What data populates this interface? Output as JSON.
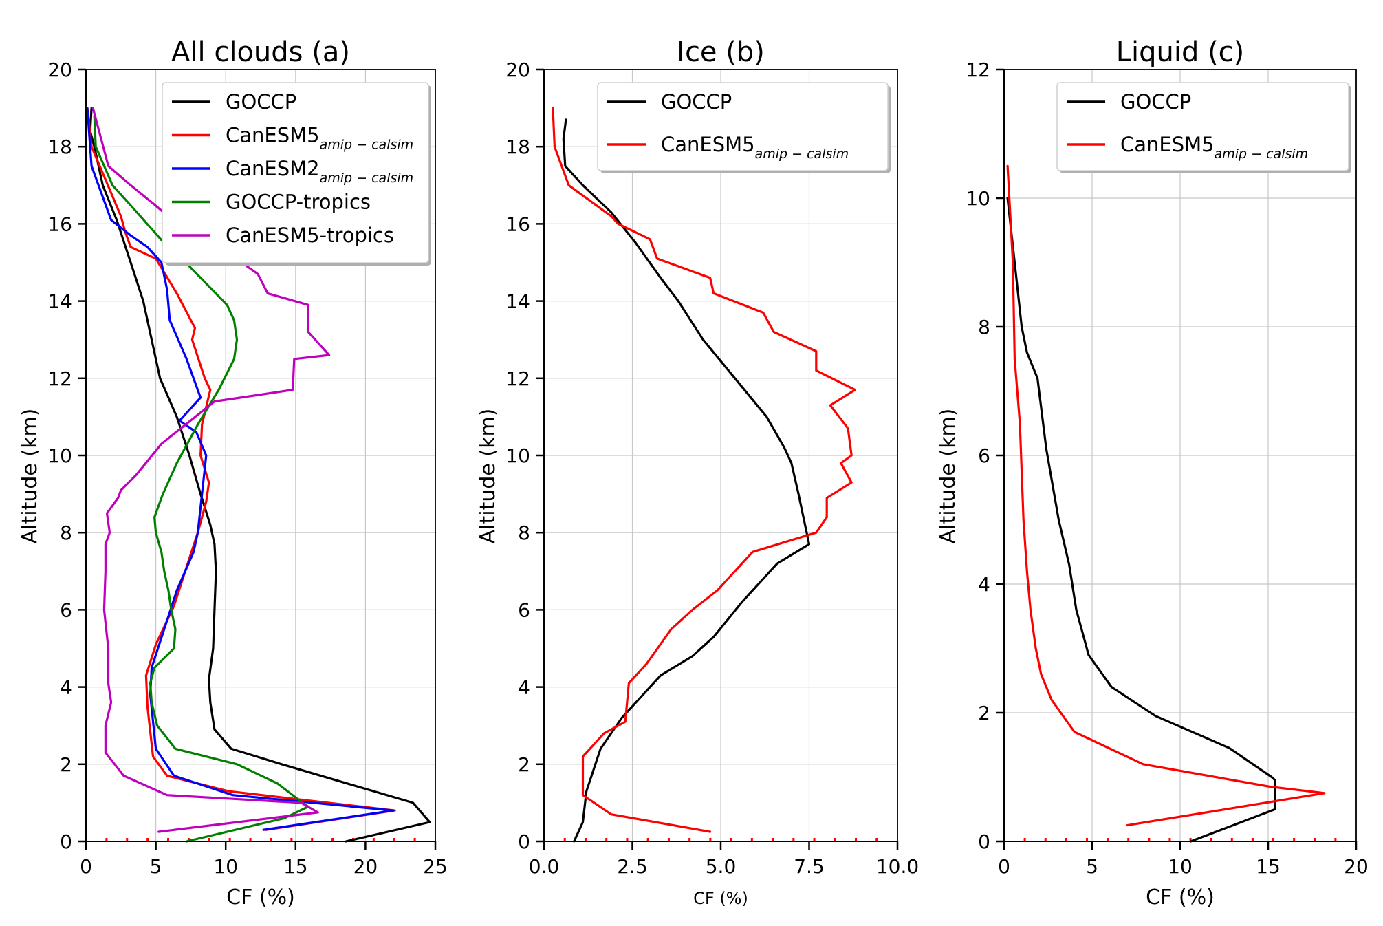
{
  "colors": {
    "GOCCP": "#000000",
    "CanESM5": "#ff0000",
    "CanESM2": "#0000ff",
    "GOCCP-tropics": "#008000",
    "CanESM5-tropics": "#bf00bf",
    "marker": "#ff0000"
  },
  "chart_data": [
    {
      "type": "line",
      "title": "All clouds (a)",
      "xlabel": "CF (%)",
      "ylabel": "Altitude (km)",
      "xlim": [
        0,
        25
      ],
      "ylim": [
        0,
        20
      ],
      "xticks": [
        0,
        5,
        10,
        15,
        20,
        25
      ],
      "xtick_labels": [
        "0",
        "5",
        "10",
        "15",
        "20",
        "25"
      ],
      "yticks": [
        0,
        2,
        4,
        6,
        8,
        10,
        12,
        14,
        16,
        18,
        20
      ],
      "ytick_labels": [
        "0",
        "2",
        "4",
        "6",
        "8",
        "10",
        "12",
        "14",
        "16",
        "18",
        "20"
      ],
      "grid": true,
      "legend_position": "top-right",
      "series": [
        {
          "name": "GOCCP",
          "subscript": "",
          "color_key": "GOCCP",
          "x": [
            18.6,
            24.6,
            23.4,
            14.0,
            10.4,
            9.2,
            8.9,
            8.8,
            9.1,
            9.2,
            9.3,
            9.2,
            8.9,
            8.2,
            7.4,
            6.5,
            5.3,
            4.7,
            4.1,
            3.2,
            2.2,
            1.2,
            0.6,
            0.3,
            0.4
          ],
          "y": [
            0.0,
            0.5,
            1.0,
            2.0,
            2.4,
            2.9,
            3.6,
            4.2,
            5.0,
            6.0,
            7.0,
            7.7,
            8.2,
            9.0,
            10.0,
            11.0,
            12.0,
            13.0,
            14.0,
            15.0,
            16.1,
            17.0,
            18.0,
            18.4,
            19.0
          ]
        },
        {
          "name": "CanESM5",
          "subscript": "amip − calsim",
          "color_key": "CanESM5",
          "x": [
            12.9,
            22.1,
            10.2,
            5.8,
            4.8,
            4.4,
            4.3,
            5.0,
            6.3,
            7.1,
            8.0,
            8.6,
            8.8,
            8.2,
            8.3,
            8.9,
            8.5,
            7.6,
            7.8,
            6.5,
            5.0,
            3.2,
            2.8,
            2.5,
            1.8,
            0.4,
            0.1
          ],
          "y": [
            0.3,
            0.8,
            1.3,
            1.7,
            2.2,
            3.5,
            4.3,
            5.1,
            6.1,
            7.0,
            8.0,
            8.8,
            9.3,
            10.0,
            10.8,
            11.7,
            12.0,
            13.0,
            13.3,
            14.2,
            15.1,
            15.4,
            15.8,
            16.2,
            16.8,
            18.0,
            19.0
          ]
        },
        {
          "name": "CanESM2",
          "subscript": "amip − calsim",
          "color_key": "CanESM2",
          "x": [
            12.7,
            22.0,
            10.5,
            6.3,
            5.0,
            4.6,
            4.7,
            5.6,
            6.5,
            7.7,
            8.0,
            8.6,
            7.9,
            6.7,
            8.2,
            7.2,
            6.0,
            5.8,
            5.4,
            4.4,
            3.2,
            1.8,
            0.4,
            0.1
          ],
          "y": [
            0.3,
            0.8,
            1.2,
            1.7,
            2.4,
            3.8,
            4.5,
            5.5,
            6.5,
            7.5,
            8.0,
            10.0,
            10.6,
            10.9,
            11.5,
            12.5,
            13.5,
            14.3,
            15.0,
            15.4,
            15.7,
            16.1,
            17.5,
            19.0
          ]
        },
        {
          "name": "GOCCP-tropics",
          "subscript": "",
          "color_key": "GOCCP-tropics",
          "x": [
            7.2,
            14.2,
            15.9,
            15.5,
            13.7,
            10.8,
            6.4,
            5.1,
            4.7,
            4.6,
            4.9,
            6.3,
            6.4,
            6.1,
            5.9,
            5.6,
            5.4,
            5.0,
            4.9,
            5.5,
            6.5,
            8.0,
            9.5,
            10.6,
            10.8,
            10.6,
            10.1,
            7.4,
            5.6,
            3.4,
            1.9,
            0.7,
            0.6
          ],
          "y": [
            0.0,
            0.6,
            0.9,
            1.0,
            1.5,
            2.0,
            2.4,
            3.0,
            3.6,
            4.1,
            4.5,
            5.0,
            5.5,
            6.0,
            6.5,
            7.0,
            7.5,
            8.0,
            8.4,
            9.0,
            9.8,
            10.8,
            11.7,
            12.5,
            13.0,
            13.5,
            13.9,
            14.9,
            15.5,
            16.4,
            17.0,
            18.0,
            18.8
          ]
        },
        {
          "name": "CanESM5-tropics",
          "subscript": "",
          "color_key": "CanESM5-tropics",
          "x": [
            5.2,
            16.6,
            15.4,
            5.8,
            2.7,
            1.4,
            1.4,
            1.8,
            1.6,
            1.6,
            1.3,
            1.4,
            1.4,
            1.7,
            1.5,
            2.3,
            2.5,
            3.6,
            5.4,
            9.2,
            14.8,
            14.9,
            17.4,
            15.9,
            15.9,
            13.0,
            12.3,
            9.6,
            6.2,
            4.9,
            3.2,
            1.6,
            0.5
          ],
          "y": [
            0.25,
            0.75,
            1.0,
            1.2,
            1.7,
            2.3,
            3.0,
            3.6,
            4.1,
            5.0,
            6.0,
            7.0,
            7.7,
            8.0,
            8.5,
            8.9,
            9.1,
            9.5,
            10.3,
            11.4,
            11.7,
            12.5,
            12.6,
            13.2,
            13.9,
            14.2,
            14.7,
            15.4,
            16.1,
            16.5,
            17.0,
            17.5,
            19.0
          ]
        }
      ]
    },
    {
      "type": "line",
      "title": "Ice (b)",
      "xlabel": "CF (%)",
      "ylabel": "Altitude (km)",
      "xlim": [
        0,
        10
      ],
      "ylim": [
        0,
        20
      ],
      "xticks": [
        0,
        2.5,
        5,
        7.5,
        10
      ],
      "xtick_labels": [
        "0.0",
        "2.5",
        "5.0",
        "7.5",
        "10.0"
      ],
      "yticks": [
        0,
        2,
        4,
        6,
        8,
        10,
        12,
        14,
        16,
        18,
        20
      ],
      "ytick_labels": [
        "0",
        "2",
        "4",
        "6",
        "8",
        "10",
        "12",
        "14",
        "16",
        "18",
        "20"
      ],
      "grid": true,
      "legend_position": "top-right",
      "series": [
        {
          "name": "GOCCP",
          "subscript": "",
          "color_key": "GOCCP",
          "x": [
            0.85,
            1.1,
            1.2,
            1.6,
            2.2,
            3.3,
            4.2,
            4.8,
            5.6,
            6.6,
            7.5,
            7.2,
            7.0,
            6.8,
            6.3,
            5.4,
            4.5,
            3.8,
            3.3,
            2.6,
            1.9,
            1.1,
            0.6,
            0.55,
            0.62
          ],
          "y": [
            0.0,
            0.5,
            1.3,
            2.4,
            3.2,
            4.3,
            4.8,
            5.3,
            6.2,
            7.2,
            7.7,
            9.0,
            9.8,
            10.2,
            11.0,
            12.0,
            13.0,
            14.0,
            14.6,
            15.5,
            16.3,
            17.0,
            17.5,
            18.2,
            18.7
          ]
        },
        {
          "name": "CanESM5",
          "subscript": "amip − calsim",
          "color_key": "CanESM5",
          "x": [
            4.7,
            1.9,
            1.1,
            1.1,
            1.7,
            2.3,
            2.4,
            2.9,
            3.6,
            4.2,
            4.9,
            5.9,
            7.7,
            8.0,
            8.0,
            8.7,
            8.4,
            8.7,
            8.6,
            8.1,
            8.8,
            7.7,
            7.7,
            6.5,
            6.2,
            4.8,
            4.7,
            3.2,
            3.0,
            2.1,
            1.9,
            1.3,
            0.7,
            0.3,
            0.25
          ],
          "y": [
            0.25,
            0.7,
            1.2,
            2.2,
            2.8,
            3.1,
            4.1,
            4.6,
            5.5,
            6.0,
            6.5,
            7.5,
            8.0,
            8.4,
            8.9,
            9.3,
            9.8,
            10.0,
            10.7,
            11.3,
            11.7,
            12.2,
            12.7,
            13.2,
            13.7,
            14.2,
            14.6,
            15.1,
            15.6,
            16.0,
            16.2,
            16.6,
            17.0,
            18.0,
            19.0
          ]
        }
      ]
    },
    {
      "type": "line",
      "title": "Liquid (c)",
      "xlabel": "CF (%)",
      "ylabel": "Altitude (km)",
      "xlim": [
        0,
        20
      ],
      "ylim": [
        0,
        12
      ],
      "xticks": [
        0,
        5,
        10,
        15,
        20
      ],
      "xtick_labels": [
        "0",
        "5",
        "10",
        "15",
        "20"
      ],
      "yticks": [
        0,
        2,
        4,
        6,
        8,
        10,
        12
      ],
      "ytick_labels": [
        "0",
        "2",
        "4",
        "6",
        "8",
        "10",
        "12"
      ],
      "grid": true,
      "legend_position": "top-right",
      "series": [
        {
          "name": "GOCCP",
          "subscript": "",
          "color_key": "GOCCP",
          "x": [
            10.6,
            15.4,
            15.4,
            15.2,
            12.8,
            8.6,
            6.1,
            4.8,
            4.1,
            3.7,
            3.1,
            2.4,
            1.9,
            1.3,
            1.0,
            0.6,
            0.2
          ],
          "y": [
            0.0,
            0.5,
            0.95,
            1.0,
            1.45,
            1.95,
            2.4,
            2.9,
            3.6,
            4.3,
            5.0,
            6.1,
            7.2,
            7.6,
            8.0,
            9.0,
            10.0
          ]
        },
        {
          "name": "CanESM5",
          "subscript": "amip − calsim",
          "color_key": "CanESM5",
          "x": [
            7.0,
            18.2,
            15.1,
            7.9,
            4.0,
            2.7,
            2.1,
            1.8,
            1.5,
            1.3,
            1.1,
            0.9,
            0.6,
            0.5,
            0.2
          ],
          "y": [
            0.25,
            0.75,
            0.85,
            1.2,
            1.7,
            2.2,
            2.6,
            3.0,
            3.6,
            4.2,
            5.0,
            6.5,
            7.5,
            9.0,
            10.5
          ]
        }
      ]
    }
  ]
}
